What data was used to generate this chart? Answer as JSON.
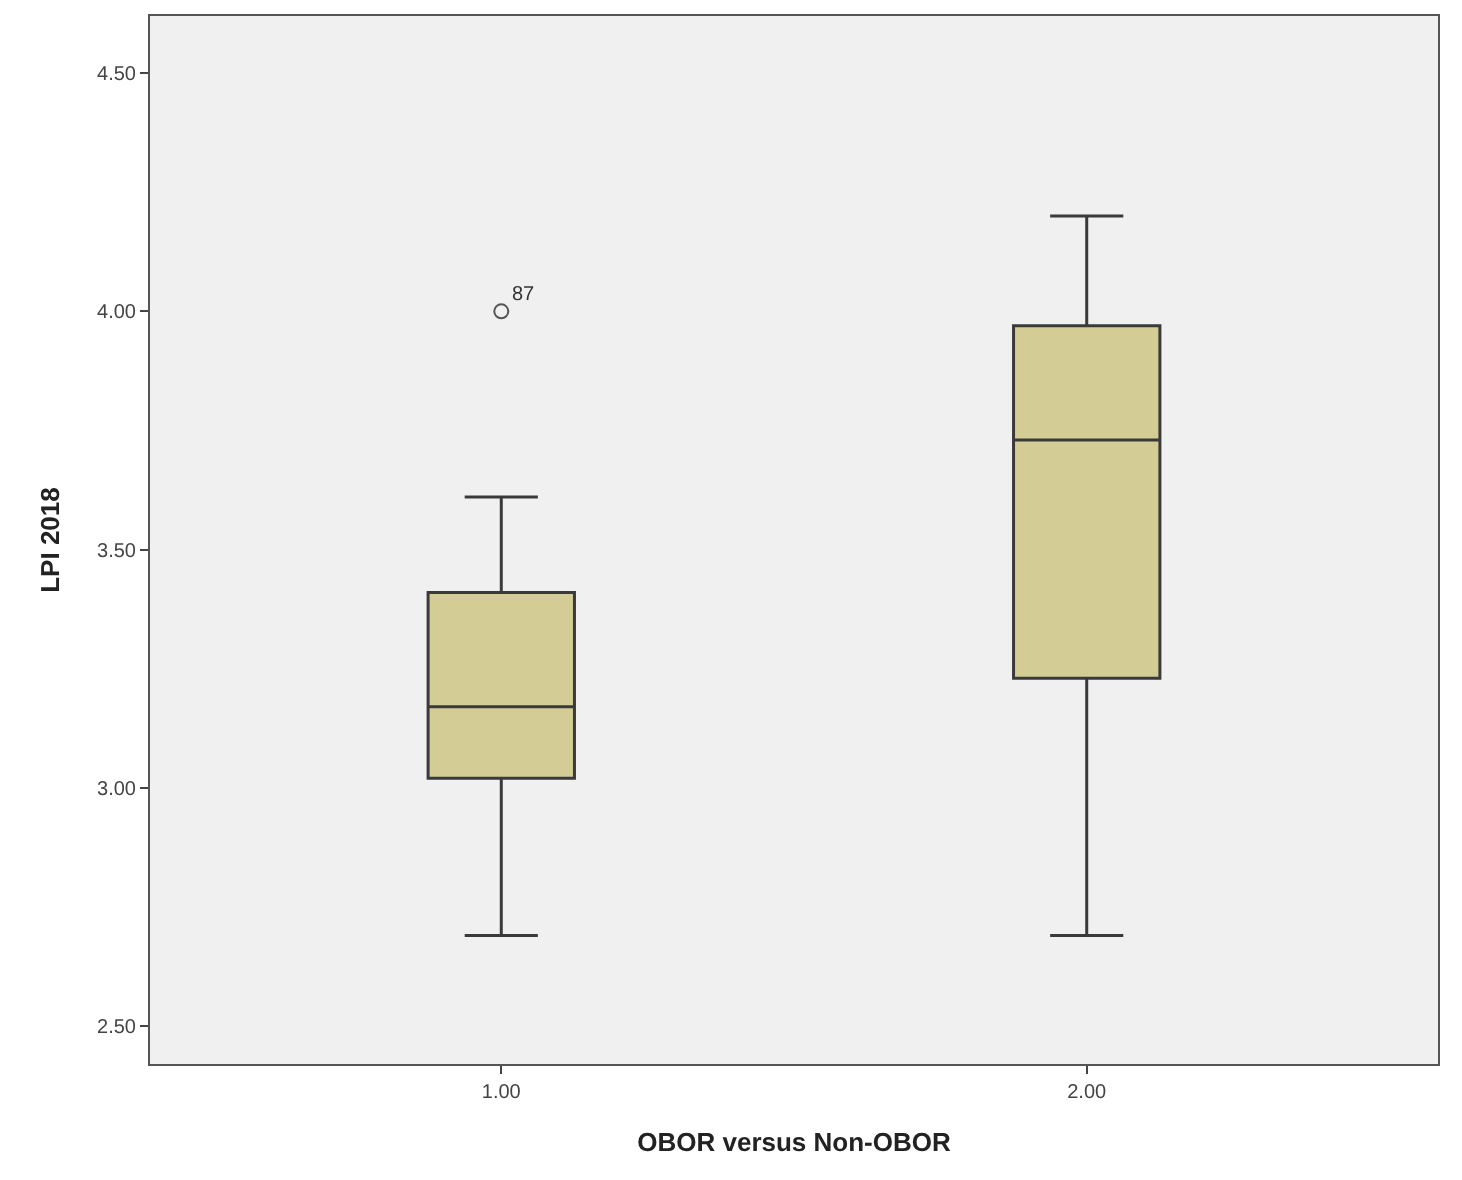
{
  "chart_data": {
    "type": "box",
    "xlabel": "OBOR versus Non-OBOR",
    "ylabel": "LPI 2018",
    "categories": [
      "1.00",
      "2.00"
    ],
    "boxes": [
      {
        "low": 2.69,
        "q1": 3.02,
        "median": 3.17,
        "q3": 3.41,
        "high": 3.61,
        "outliers": [
          4.0
        ]
      },
      {
        "low": 2.69,
        "q1": 3.23,
        "median": 3.73,
        "q3": 3.97,
        "high": 4.2
      }
    ],
    "color": "#d3cc94",
    "ylim": [
      2.42,
      4.62
    ],
    "yticks": [
      {
        "value": 2.5,
        "label": "2.50"
      },
      {
        "value": 3.0,
        "label": "3.00"
      },
      {
        "value": 3.5,
        "label": "3.50"
      },
      {
        "value": 4.0,
        "label": "4.00"
      },
      {
        "value": 4.5,
        "label": "4.50"
      }
    ],
    "grid": false,
    "annotations": [
      "87"
    ]
  }
}
